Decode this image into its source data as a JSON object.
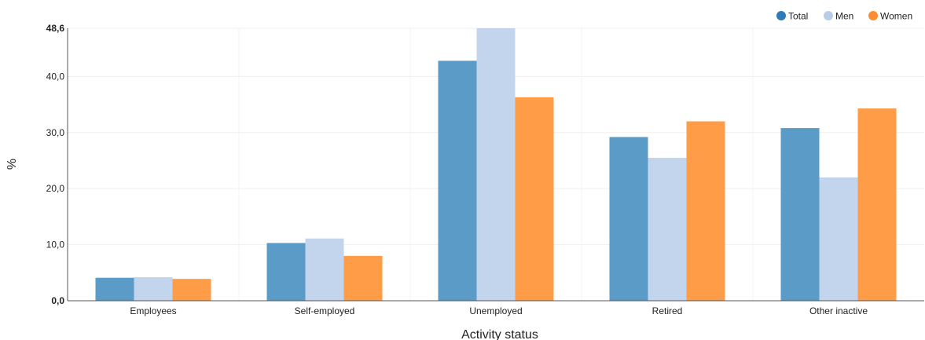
{
  "chart_data": {
    "type": "bar",
    "xlabel": "Activity status",
    "ylabel": "%",
    "categories": [
      "Employees",
      "Self-employed",
      "Unemployed",
      "Retired",
      "Other inactive"
    ],
    "series": [
      {
        "name": "Total",
        "color": "#5b9bc8",
        "legend_color": "#2f7ab8",
        "values": [
          4.1,
          10.3,
          42.8,
          29.2,
          30.8
        ]
      },
      {
        "name": "Men",
        "color": "#c3d5ec",
        "legend_color": "#b7cde9",
        "values": [
          4.2,
          11.1,
          48.6,
          25.5,
          22.0
        ]
      },
      {
        "name": "Women",
        "color": "#ff9c47",
        "legend_color": "#ff8c2e",
        "values": [
          3.9,
          8.0,
          36.3,
          32.0,
          34.3
        ]
      }
    ],
    "ylim": [
      0,
      48.6
    ],
    "yticks": [
      {
        "value": 0,
        "label": "0,0",
        "bold": true
      },
      {
        "value": 10,
        "label": "10,0",
        "bold": false
      },
      {
        "value": 20,
        "label": "20,0",
        "bold": false
      },
      {
        "value": 30,
        "label": "30,0",
        "bold": false
      },
      {
        "value": 40,
        "label": "40,0",
        "bold": false
      },
      {
        "value": 48.6,
        "label": "48,6",
        "bold": true
      }
    ],
    "grid": true,
    "legend_position": "top-right"
  }
}
